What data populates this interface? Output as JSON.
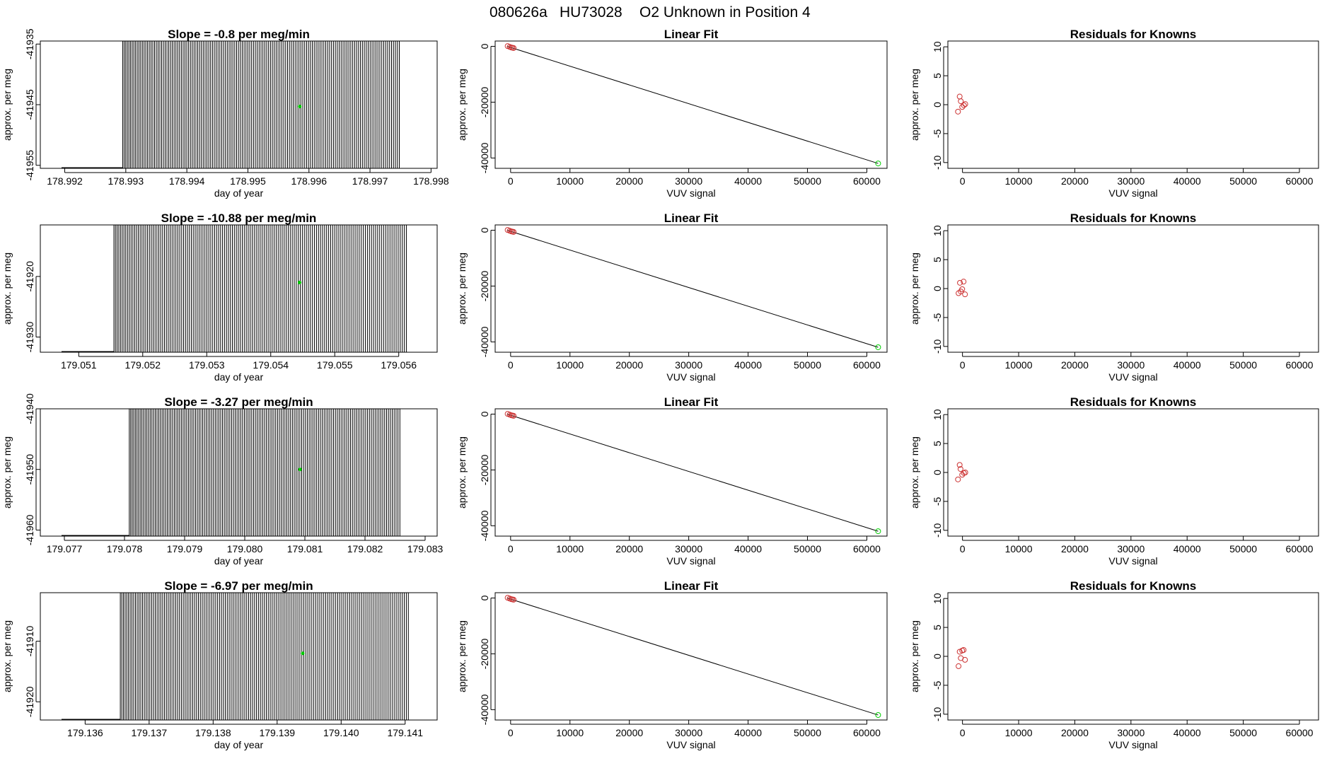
{
  "figure": {
    "title_run": "080626a",
    "title_sample": "HU73028",
    "title_desc": "O2 Unknown in Position  4"
  },
  "colors": {
    "signal": "#000000",
    "unknown": "#00cc00",
    "known": "#cc3333",
    "axis": "#000000"
  },
  "chart_data": [
    {
      "type": "line",
      "row": 0,
      "title": "Slope =  -0.8  per meg/min",
      "xlabel": "day of year",
      "ylabel": "approx. per meg",
      "xlim": [
        178.9916,
        178.9981
      ],
      "ylim": [
        -41955.5,
        -41934.5
      ],
      "xticks": [
        "178.992",
        "178.993",
        "178.994",
        "178.995",
        "178.996",
        "178.997",
        "178.998"
      ],
      "yticks": [
        "-41935",
        "-41945",
        "-41955"
      ],
      "signal_x_range": [
        178.99295,
        178.99748
      ],
      "unknown_points": [
        {
          "x": 178.99585,
          "y": -41945.3
        }
      ]
    },
    {
      "type": "scatter",
      "row": 0,
      "title": "Linear Fit",
      "xlabel": "VUV signal",
      "ylabel": "approx. per meg",
      "xlim": [
        -2600,
        63400
      ],
      "ylim": [
        -43700,
        1900
      ],
      "xticks": [
        "0",
        "10000",
        "20000",
        "30000",
        "40000",
        "50000",
        "60000"
      ],
      "yticks": [
        "0",
        "-20000",
        "-40000"
      ],
      "fit_line": [
        [
          -600,
          0
        ],
        [
          61900,
          -41945
        ]
      ],
      "known_points": [
        [
          -500,
          80
        ],
        [
          -150,
          -200
        ],
        [
          100,
          -400
        ],
        [
          300,
          -500
        ],
        [
          500,
          -600
        ]
      ],
      "unknown_points": [
        [
          61900,
          -41945
        ]
      ]
    },
    {
      "type": "scatter",
      "row": 0,
      "title": "Residuals for Knowns",
      "xlabel": "VUV signal",
      "ylabel": "approx. per meg",
      "xlim": [
        -2600,
        63400
      ],
      "ylim": [
        -11,
        11
      ],
      "xticks": [
        "0",
        "10000",
        "20000",
        "30000",
        "40000",
        "50000",
        "60000"
      ],
      "yticks": [
        "10",
        "5",
        "0",
        "-5",
        "-10"
      ],
      "known_points": [
        [
          -800,
          -1.2
        ],
        [
          -500,
          1.4
        ],
        [
          -300,
          0.6
        ],
        [
          -50,
          -0.4
        ],
        [
          250,
          -0.1
        ],
        [
          500,
          0.1
        ]
      ]
    },
    {
      "type": "line",
      "row": 1,
      "title": "Slope =  -10.88  per meg/min",
      "xlabel": "day of year",
      "ylabel": "approx. per meg",
      "xlim": [
        179.0504,
        179.0566
      ],
      "ylim": [
        -41932.5,
        -41911.5
      ],
      "xticks": [
        "179.051",
        "179.052",
        "179.053",
        "179.054",
        "179.055",
        "179.056"
      ],
      "yticks": [
        "-41920",
        "-41930"
      ],
      "signal_x_range": [
        179.05155,
        179.05612
      ],
      "unknown_points": [
        {
          "x": 179.05445,
          "y": -41921
        }
      ]
    },
    {
      "type": "scatter",
      "row": 1,
      "title": "Linear Fit",
      "xlabel": "VUV signal",
      "ylabel": "approx. per meg",
      "xlim": [
        -2600,
        63400
      ],
      "ylim": [
        -43700,
        1900
      ],
      "xticks": [
        "0",
        "10000",
        "20000",
        "30000",
        "40000",
        "50000",
        "60000"
      ],
      "yticks": [
        "0",
        "-20000",
        "-40000"
      ],
      "fit_line": [
        [
          -600,
          0
        ],
        [
          61900,
          -41920
        ]
      ],
      "known_points": [
        [
          -500,
          80
        ],
        [
          -150,
          -200
        ],
        [
          100,
          -400
        ],
        [
          300,
          -500
        ],
        [
          500,
          -600
        ]
      ],
      "unknown_points": [
        [
          61900,
          -41920
        ]
      ]
    },
    {
      "type": "scatter",
      "row": 1,
      "title": "Residuals for Knowns",
      "xlabel": "VUV signal",
      "ylabel": "approx. per meg",
      "xlim": [
        -2600,
        63400
      ],
      "ylim": [
        -11,
        11
      ],
      "xticks": [
        "0",
        "10000",
        "20000",
        "30000",
        "40000",
        "50000",
        "60000"
      ],
      "yticks": [
        "10",
        "5",
        "0",
        "-5",
        "-10"
      ],
      "known_points": [
        [
          -700,
          -0.8
        ],
        [
          -450,
          1.0
        ],
        [
          -300,
          -0.5
        ],
        [
          -50,
          -0.1
        ],
        [
          200,
          1.2
        ],
        [
          450,
          -1.0
        ]
      ]
    },
    {
      "type": "line",
      "row": 2,
      "title": "Slope =  -3.27  per meg/min",
      "xlabel": "day of year",
      "ylabel": "approx. per meg",
      "xlim": [
        179.0766,
        179.0832
      ],
      "ylim": [
        -41961,
        -41940
      ],
      "xticks": [
        "179.077",
        "179.078",
        "179.079",
        "179.080",
        "179.081",
        "179.082",
        "179.083"
      ],
      "yticks": [
        "-41940",
        "-41950",
        "-41960"
      ],
      "signal_x_range": [
        179.07808,
        179.08258
      ],
      "unknown_points": [
        {
          "x": 179.08092,
          "y": -41950
        }
      ]
    },
    {
      "type": "scatter",
      "row": 2,
      "title": "Linear Fit",
      "xlabel": "VUV signal",
      "ylabel": "approx. per meg",
      "xlim": [
        -2600,
        63400
      ],
      "ylim": [
        -43700,
        1900
      ],
      "xticks": [
        "0",
        "10000",
        "20000",
        "30000",
        "40000",
        "50000",
        "60000"
      ],
      "yticks": [
        "0",
        "-20000",
        "-40000"
      ],
      "fit_line": [
        [
          -600,
          0
        ],
        [
          61900,
          -41950
        ]
      ],
      "known_points": [
        [
          -500,
          80
        ],
        [
          -150,
          -200
        ],
        [
          100,
          -400
        ],
        [
          300,
          -500
        ],
        [
          500,
          -600
        ]
      ],
      "unknown_points": [
        [
          61900,
          -41950
        ]
      ]
    },
    {
      "type": "scatter",
      "row": 2,
      "title": "Residuals for Knowns",
      "xlabel": "VUV signal",
      "ylabel": "approx. per meg",
      "xlim": [
        -2600,
        63400
      ],
      "ylim": [
        -11,
        11
      ],
      "xticks": [
        "0",
        "10000",
        "20000",
        "30000",
        "40000",
        "50000",
        "60000"
      ],
      "yticks": [
        "10",
        "5",
        "0",
        "-5",
        "-10"
      ],
      "known_points": [
        [
          -800,
          -1.2
        ],
        [
          -500,
          1.3
        ],
        [
          -350,
          0.6
        ],
        [
          -50,
          -0.4
        ],
        [
          250,
          -0.1
        ],
        [
          500,
          0.0
        ]
      ]
    },
    {
      "type": "line",
      "row": 3,
      "title": "Slope =  -6.97  per meg/min",
      "xlabel": "day of year",
      "ylabel": "approx. per meg",
      "xlim": [
        179.1353,
        179.1415
      ],
      "ylim": [
        -41923,
        -41902
      ],
      "xticks": [
        "179.136",
        "179.137",
        "179.138",
        "179.139",
        "179.140",
        "179.141"
      ],
      "yticks": [
        "-41910",
        "-41920"
      ],
      "signal_x_range": [
        179.13655,
        179.14105
      ],
      "unknown_points": [
        {
          "x": 179.1394,
          "y": -41912
        }
      ]
    },
    {
      "type": "scatter",
      "row": 3,
      "title": "Linear Fit",
      "xlabel": "VUV signal",
      "ylabel": "approx. per meg",
      "xlim": [
        -2600,
        63400
      ],
      "ylim": [
        -43700,
        1900
      ],
      "xticks": [
        "0",
        "10000",
        "20000",
        "30000",
        "40000",
        "50000",
        "60000"
      ],
      "yticks": [
        "0",
        "-20000",
        "-40000"
      ],
      "fit_line": [
        [
          -600,
          0
        ],
        [
          61900,
          -41912
        ]
      ],
      "known_points": [
        [
          -500,
          80
        ],
        [
          -150,
          -200
        ],
        [
          100,
          -400
        ],
        [
          300,
          -500
        ],
        [
          500,
          -600
        ]
      ],
      "unknown_points": [
        [
          61900,
          -41912
        ]
      ]
    },
    {
      "type": "scatter",
      "row": 3,
      "title": "Residuals for Knowns",
      "xlabel": "VUV signal",
      "ylabel": "approx. per meg",
      "xlim": [
        -2600,
        63400
      ],
      "ylim": [
        -11,
        11
      ],
      "xticks": [
        "0",
        "10000",
        "20000",
        "30000",
        "40000",
        "50000",
        "60000"
      ],
      "yticks": [
        "10",
        "5",
        "0",
        "-5",
        "-10"
      ],
      "known_points": [
        [
          -700,
          -1.7
        ],
        [
          -500,
          0.8
        ],
        [
          -300,
          -0.3
        ],
        [
          -50,
          1.0
        ],
        [
          200,
          1.1
        ],
        [
          450,
          -0.6
        ]
      ]
    }
  ]
}
